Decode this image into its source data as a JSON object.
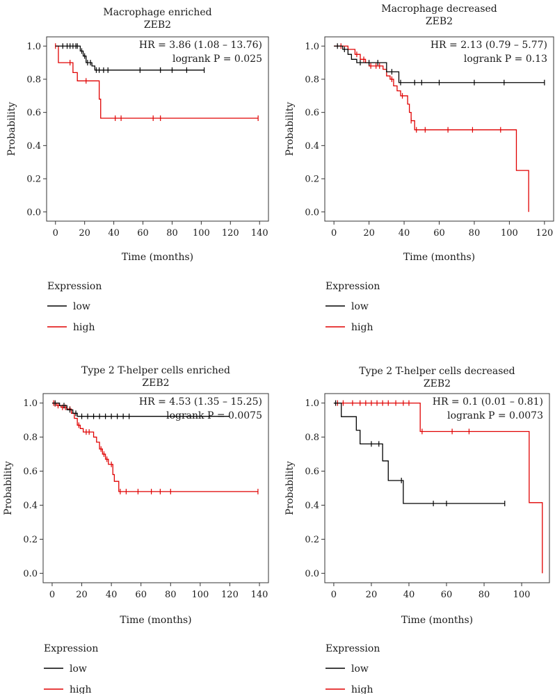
{
  "chart_data": [
    {
      "type": "line",
      "subtype": "kaplan-meier",
      "title": "Macrophage enriched",
      "subtitle": "ZEB2",
      "xlabel": "Time (months)",
      "ylabel": "Probability",
      "xlim": [
        0,
        140
      ],
      "ylim": [
        0,
        1.0
      ],
      "xticks": [
        0,
        20,
        40,
        60,
        80,
        100,
        120,
        140
      ],
      "yticks": [
        0.0,
        0.2,
        0.4,
        0.6,
        0.8,
        1.0
      ],
      "hr_text": "HR = 3.86 (1.08 – 13.76)",
      "p_text": "logrank P = 0.025",
      "legend_title": "Expression",
      "series": [
        {
          "name": "low",
          "color": "#000000",
          "steps": [
            [
              0,
              1.0
            ],
            [
              17,
              0.97
            ],
            [
              19,
              0.94
            ],
            [
              21,
              0.9
            ],
            [
              25,
              0.88
            ],
            [
              27,
              0.855
            ],
            [
              102,
              0.855
            ]
          ],
          "censors": [
            [
              5,
              1.0
            ],
            [
              8,
              1.0
            ],
            [
              10,
              1.0
            ],
            [
              12,
              1.0
            ],
            [
              14,
              1.0
            ],
            [
              15,
              1.0
            ],
            [
              18,
              0.97
            ],
            [
              20,
              0.94
            ],
            [
              22,
              0.9
            ],
            [
              24,
              0.9
            ],
            [
              28,
              0.855
            ],
            [
              30,
              0.855
            ],
            [
              33,
              0.855
            ],
            [
              36,
              0.855
            ],
            [
              58,
              0.855
            ],
            [
              72,
              0.855
            ],
            [
              80,
              0.855
            ],
            [
              90,
              0.855
            ],
            [
              102,
              0.855
            ]
          ]
        },
        {
          "name": "high",
          "color": "#e00000",
          "steps": [
            [
              0,
              1.0
            ],
            [
              2,
              0.9
            ],
            [
              12,
              0.84
            ],
            [
              15,
              0.79
            ],
            [
              30,
              0.68
            ],
            [
              31,
              0.565
            ],
            [
              139,
              0.565
            ]
          ],
          "censors": [
            [
              0,
              1.0
            ],
            [
              10,
              0.9
            ],
            [
              21,
              0.79
            ],
            [
              41,
              0.565
            ],
            [
              45,
              0.565
            ],
            [
              67,
              0.565
            ],
            [
              72,
              0.565
            ],
            [
              139,
              0.565
            ]
          ]
        }
      ]
    },
    {
      "type": "line",
      "subtype": "kaplan-meier",
      "title": "Macrophage decreased",
      "subtitle": "ZEB2",
      "xlabel": "Time (months)",
      "ylabel": "Probability",
      "xlim": [
        0,
        120
      ],
      "ylim": [
        0,
        1.0
      ],
      "xticks": [
        0,
        20,
        40,
        60,
        80,
        100,
        120
      ],
      "yticks": [
        0.0,
        0.2,
        0.4,
        0.6,
        0.8,
        1.0
      ],
      "hr_text": "HR = 2.13 (0.79 – 5.77)",
      "p_text": "logrank P = 0.13",
      "legend_title": "Expression",
      "series": [
        {
          "name": "low",
          "color": "#000000",
          "steps": [
            [
              0,
              1.0
            ],
            [
              5,
              0.98
            ],
            [
              8,
              0.95
            ],
            [
              10,
              0.92
            ],
            [
              13,
              0.9
            ],
            [
              30,
              0.845
            ],
            [
              37,
              0.78
            ],
            [
              120,
              0.78
            ]
          ],
          "censors": [
            [
              2,
              1.0
            ],
            [
              6,
              0.98
            ],
            [
              15,
              0.9
            ],
            [
              20,
              0.9
            ],
            [
              25,
              0.9
            ],
            [
              33,
              0.845
            ],
            [
              38,
              0.78
            ],
            [
              46,
              0.78
            ],
            [
              50,
              0.78
            ],
            [
              60,
              0.78
            ],
            [
              80,
              0.78
            ],
            [
              97,
              0.78
            ],
            [
              120,
              0.78
            ]
          ]
        },
        {
          "name": "high",
          "color": "#e00000",
          "steps": [
            [
              0,
              1.0
            ],
            [
              8,
              0.98
            ],
            [
              12,
              0.95
            ],
            [
              15,
              0.92
            ],
            [
              18,
              0.9
            ],
            [
              20,
              0.88
            ],
            [
              28,
              0.86
            ],
            [
              30,
              0.82
            ],
            [
              32,
              0.8
            ],
            [
              34,
              0.76
            ],
            [
              36,
              0.73
            ],
            [
              38,
              0.7
            ],
            [
              42,
              0.65
            ],
            [
              43,
              0.6
            ],
            [
              44,
              0.55
            ],
            [
              46,
              0.495
            ],
            [
              103,
              0.495
            ],
            [
              104,
              0.25
            ],
            [
              111,
              0.25
            ],
            [
              111,
              0.0
            ]
          ],
          "censors": [
            [
              4,
              1.0
            ],
            [
              13,
              0.95
            ],
            [
              17,
              0.92
            ],
            [
              21,
              0.88
            ],
            [
              24,
              0.88
            ],
            [
              26,
              0.88
            ],
            [
              33,
              0.8
            ],
            [
              39,
              0.7
            ],
            [
              44,
              0.55
            ],
            [
              47,
              0.495
            ],
            [
              52,
              0.495
            ],
            [
              65,
              0.495
            ],
            [
              79,
              0.495
            ],
            [
              95,
              0.495
            ]
          ]
        }
      ]
    },
    {
      "type": "line",
      "subtype": "kaplan-meier",
      "title": "Type 2 T-helper cells enriched",
      "subtitle": "ZEB2",
      "xlabel": "Time (months)",
      "ylabel": "Probability",
      "xlim": [
        0,
        140
      ],
      "ylim": [
        0,
        1.0
      ],
      "xticks": [
        0,
        20,
        40,
        60,
        80,
        100,
        120,
        140
      ],
      "yticks": [
        0.0,
        0.2,
        0.4,
        0.6,
        0.8,
        1.0
      ],
      "hr_text": "HR = 4.53 (1.35 – 15.25)",
      "p_text": "logrank P = 0.0075",
      "legend_title": "Expression",
      "series": [
        {
          "name": "low",
          "color": "#000000",
          "steps": [
            [
              0,
              1.0
            ],
            [
              5,
              0.985
            ],
            [
              10,
              0.96
            ],
            [
              14,
              0.94
            ],
            [
              17,
              0.922
            ],
            [
              120,
              0.922
            ]
          ],
          "censors": [
            [
              2,
              1.0
            ],
            [
              8,
              0.985
            ],
            [
              12,
              0.96
            ],
            [
              16,
              0.94
            ],
            [
              20,
              0.922
            ],
            [
              24,
              0.922
            ],
            [
              28,
              0.922
            ],
            [
              32,
              0.922
            ],
            [
              36,
              0.922
            ],
            [
              40,
              0.922
            ],
            [
              44,
              0.922
            ],
            [
              48,
              0.922
            ],
            [
              52,
              0.922
            ]
          ]
        },
        {
          "name": "high",
          "color": "#e00000",
          "steps": [
            [
              0,
              1.0
            ],
            [
              3,
              0.985
            ],
            [
              6,
              0.975
            ],
            [
              10,
              0.965
            ],
            [
              13,
              0.94
            ],
            [
              15,
              0.91
            ],
            [
              17,
              0.87
            ],
            [
              19,
              0.85
            ],
            [
              21,
              0.83
            ],
            [
              28,
              0.8
            ],
            [
              30,
              0.77
            ],
            [
              32,
              0.73
            ],
            [
              34,
              0.7
            ],
            [
              36,
              0.67
            ],
            [
              38,
              0.64
            ],
            [
              41,
              0.58
            ],
            [
              42,
              0.54
            ],
            [
              45,
              0.48
            ],
            [
              139,
              0.48
            ]
          ],
          "censors": [
            [
              1,
              1.0
            ],
            [
              2,
              0.995
            ],
            [
              4,
              0.985
            ],
            [
              7,
              0.975
            ],
            [
              9,
              0.975
            ],
            [
              12,
              0.965
            ],
            [
              18,
              0.87
            ],
            [
              23,
              0.83
            ],
            [
              25,
              0.83
            ],
            [
              33,
              0.73
            ],
            [
              35,
              0.7
            ],
            [
              37,
              0.67
            ],
            [
              40,
              0.64
            ],
            [
              46,
              0.48
            ],
            [
              50,
              0.48
            ],
            [
              58,
              0.48
            ],
            [
              67,
              0.48
            ],
            [
              73,
              0.48
            ],
            [
              80,
              0.48
            ],
            [
              139,
              0.48
            ]
          ]
        }
      ]
    },
    {
      "type": "line",
      "subtype": "kaplan-meier",
      "title": "Type 2 T-helper cells decreased",
      "subtitle": "ZEB2",
      "xlabel": "Time (months)",
      "ylabel": "Probability",
      "xlim": [
        0,
        110
      ],
      "ylim": [
        0,
        1.0
      ],
      "xticks": [
        0,
        20,
        40,
        60,
        80,
        100
      ],
      "yticks": [
        0.0,
        0.2,
        0.4,
        0.6,
        0.8,
        1.0
      ],
      "hr_text": "HR = 0.1 (0.01 – 0.81)",
      "p_text": "logrank P = 0.0073",
      "legend_title": "Expression",
      "series": [
        {
          "name": "low",
          "color": "#000000",
          "steps": [
            [
              0,
              1.0
            ],
            [
              4,
              0.92
            ],
            [
              12,
              0.84
            ],
            [
              14,
              0.76
            ],
            [
              26,
              0.66
            ],
            [
              29,
              0.545
            ],
            [
              37,
              0.41
            ],
            [
              91,
              0.41
            ]
          ],
          "censors": [
            [
              1,
              1.0
            ],
            [
              20,
              0.76
            ],
            [
              24,
              0.76
            ],
            [
              36,
              0.545
            ],
            [
              53,
              0.41
            ],
            [
              60,
              0.41
            ],
            [
              91,
              0.41
            ]
          ]
        },
        {
          "name": "high",
          "color": "#e00000",
          "steps": [
            [
              0,
              1.0
            ],
            [
              44,
              1.0
            ],
            [
              46,
              0.833
            ],
            [
              103,
              0.833
            ],
            [
              104,
              0.415
            ],
            [
              111,
              0.415
            ],
            [
              111,
              0.0
            ]
          ],
          "censors": [
            [
              2,
              1.0
            ],
            [
              5,
              1.0
            ],
            [
              10,
              1.0
            ],
            [
              14,
              1.0
            ],
            [
              17,
              1.0
            ],
            [
              20,
              1.0
            ],
            [
              23,
              1.0
            ],
            [
              26,
              1.0
            ],
            [
              29,
              1.0
            ],
            [
              33,
              1.0
            ],
            [
              37,
              1.0
            ],
            [
              40,
              1.0
            ],
            [
              47,
              0.833
            ],
            [
              63,
              0.833
            ],
            [
              72,
              0.833
            ]
          ]
        }
      ]
    }
  ]
}
